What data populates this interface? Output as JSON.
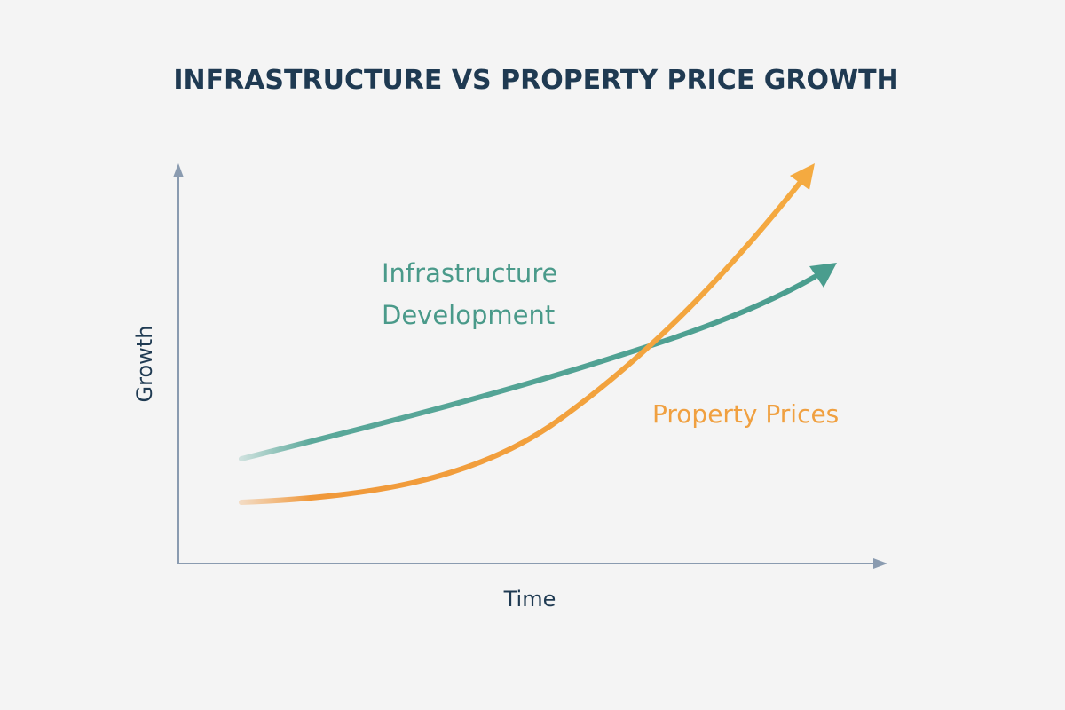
{
  "title": "INFRASTRUCTURE VS PROPERTY PRICE GROWTH",
  "axes": {
    "y_label": "Growth",
    "x_label": "Time"
  },
  "curves": [
    {
      "label_lines": [
        "Infrastructure",
        "Development"
      ]
    },
    {
      "label_lines": [
        "Property Prices"
      ]
    }
  ]
}
